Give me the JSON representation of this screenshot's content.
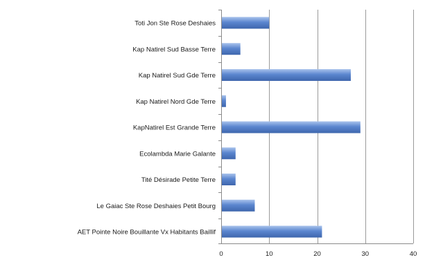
{
  "chart_data": {
    "type": "bar",
    "orientation": "horizontal",
    "categories": [
      "Toti Jon Ste Rose Deshaies",
      "Kap Natirel Sud Basse Terre",
      "Kap Natirel Sud Gde Terre",
      "Kap Natirel Nord Gde Terre",
      "KapNatirel Est Grande Terre",
      "Ecolambda Marie Galante",
      "Tité Désirade Petite Terre",
      "Le Gaiac Ste Rose Deshaies Petit Bourg",
      "AET Pointe Noire Bouillante Vx Habitants Baillif"
    ],
    "values": [
      10,
      4,
      27,
      1,
      29,
      3,
      3,
      7,
      21
    ],
    "xlim": [
      0,
      40
    ],
    "xticks": [
      0,
      10,
      20,
      30,
      40
    ],
    "grid": "vertical",
    "legend": "none",
    "title": "",
    "xlabel": "",
    "ylabel": "",
    "colors": {
      "bar": "#5b86cf",
      "bar_highlight": "#a9c3ec",
      "bar_shadow": "#3e66ad"
    }
  }
}
